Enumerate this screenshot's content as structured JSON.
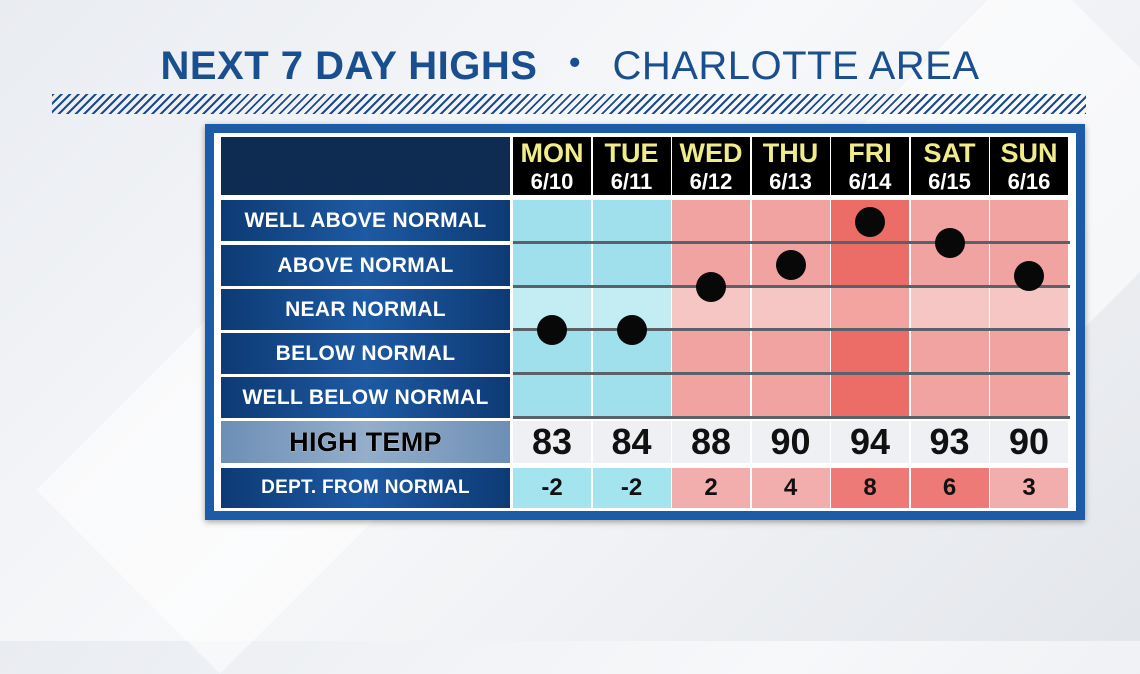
{
  "title": {
    "main": "NEXT 7 DAY HIGHS",
    "separator": "•",
    "area": "CHARLOTTE AREA"
  },
  "categories": [
    "WELL ABOVE NORMAL",
    "ABOVE NORMAL",
    "NEAR NORMAL",
    "BELOW NORMAL",
    "WELL BELOW NORMAL"
  ],
  "row_labels": {
    "high_temp": "HIGH TEMP",
    "departure": "DEPT. FROM NORMAL"
  },
  "days": [
    {
      "name": "MON",
      "date": "6/10",
      "high": "83",
      "dept": "-2"
    },
    {
      "name": "TUE",
      "date": "6/11",
      "high": "84",
      "dept": "-2"
    },
    {
      "name": "WED",
      "date": "6/12",
      "high": "88",
      "dept": "2"
    },
    {
      "name": "THU",
      "date": "6/13",
      "high": "90",
      "dept": "4"
    },
    {
      "name": "FRI",
      "date": "6/14",
      "high": "94",
      "dept": "8"
    },
    {
      "name": "SAT",
      "date": "6/15",
      "high": "93",
      "dept": "6"
    },
    {
      "name": "SUN",
      "date": "6/16",
      "high": "90",
      "dept": "3"
    }
  ],
  "colors": {
    "title": "#1a4f8f",
    "below_normal": "#9fe0ec",
    "near_normal_band": "#dbe6ea",
    "above_normal": "#f0a3a1",
    "well_above_normal": "#ec6d68",
    "dept_below": "#a3e4ee",
    "dept_above_small": "#f2aeac",
    "dept_above_large": "#ee7a77",
    "marker": "#080808"
  },
  "chart_data": {
    "type": "scatter",
    "title": "NEXT 7 DAY HIGHS • CHARLOTTE AREA",
    "categories": [
      "MON 6/10",
      "TUE 6/11",
      "WED 6/12",
      "THU 6/13",
      "FRI 6/14",
      "SAT 6/15",
      "SUN 6/16"
    ],
    "series": [
      {
        "values": [
          83,
          84,
          88,
          90,
          94,
          93,
          90
        ]
      }
    ],
    "departure_from_normal": [
      -2,
      -2,
      2,
      4,
      8,
      6,
      3
    ],
    "ylim": [
      -10,
      10
    ],
    "y_categories_top_to_bottom": [
      "WELL ABOVE NORMAL",
      "ABOVE NORMAL",
      "NEAR NORMAL",
      "BELOW NORMAL",
      "WELL BELOW NORMAL"
    ],
    "grid": true
  }
}
